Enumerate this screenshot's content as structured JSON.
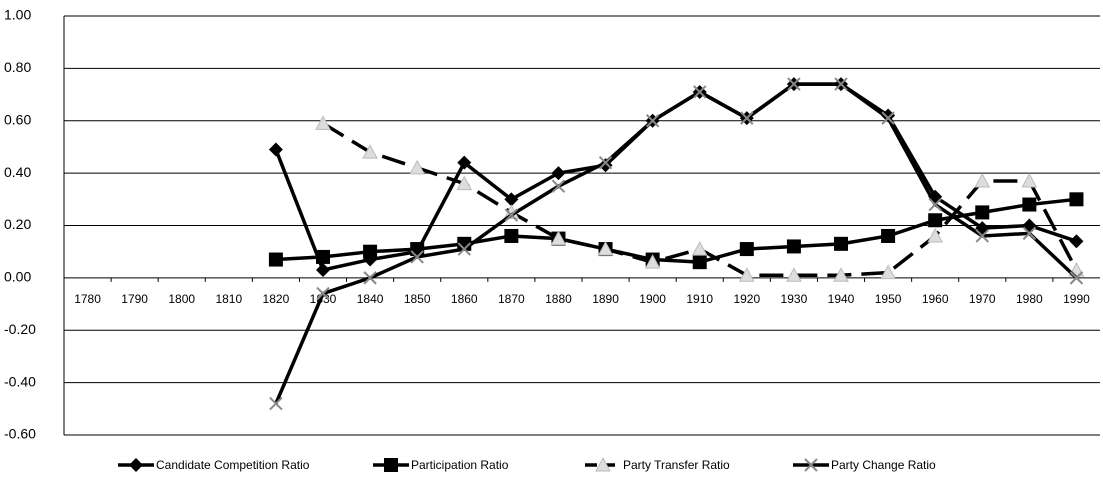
{
  "chart_data": {
    "type": "line",
    "categories": [
      "1780",
      "1790",
      "1800",
      "1810",
      "1820",
      "1830",
      "1840",
      "1850",
      "1860",
      "1870",
      "1880",
      "1890",
      "1900",
      "1910",
      "1920",
      "1930",
      "1940",
      "1950",
      "1960",
      "1970",
      "1980",
      "1990"
    ],
    "ylim": [
      -0.6,
      1.0
    ],
    "yticks": [
      {
        "value": 1.0,
        "label": "1.00"
      },
      {
        "value": 0.8,
        "label": "0.80"
      },
      {
        "value": 0.6,
        "label": "0.60"
      },
      {
        "value": 0.4,
        "label": "0.40"
      },
      {
        "value": 0.2,
        "label": "0.20"
      },
      {
        "value": 0,
        "label": "0.00"
      },
      {
        "value": -0.2,
        "label": "-0.20"
      },
      {
        "value": -0.4,
        "label": "-0.40"
      },
      {
        "value": -0.6,
        "label": "-0.60"
      }
    ],
    "grid": true,
    "legend": "bottom",
    "series": [
      {
        "name": "Candidate Competition Ratio",
        "color": "#000000",
        "marker": "diamond",
        "dashed": false,
        "values": [
          null,
          null,
          null,
          null,
          0.49,
          0.03,
          0.07,
          0.1,
          0.44,
          0.3,
          0.4,
          0.43,
          0.6,
          0.71,
          0.61,
          0.74,
          0.74,
          0.62,
          0.31,
          0.19,
          0.2,
          0.14
        ]
      },
      {
        "name": "Participation Ratio",
        "color": "#000000",
        "marker": "square",
        "dashed": false,
        "values": [
          null,
          null,
          null,
          null,
          0.07,
          0.08,
          0.1,
          0.11,
          0.13,
          0.16,
          0.15,
          0.11,
          0.07,
          0.06,
          0.11,
          0.12,
          0.13,
          0.16,
          0.22,
          0.25,
          0.28,
          0.3
        ]
      },
      {
        "name": "Party Transfer Ratio",
        "color": "#000000",
        "marker": "triangle",
        "dashed": true,
        "values": [
          null,
          null,
          null,
          null,
          null,
          0.59,
          0.48,
          0.42,
          0.36,
          0.25,
          0.15,
          0.11,
          0.06,
          0.11,
          0.01,
          0.01,
          0.01,
          0.02,
          0.16,
          0.37,
          0.37,
          0.03
        ]
      },
      {
        "name": "Party Change Ratio",
        "color": "#000000",
        "marker": "x",
        "dashed": false,
        "values": [
          null,
          null,
          null,
          null,
          -0.48,
          -0.06,
          0.0,
          0.08,
          0.11,
          0.24,
          0.35,
          0.44,
          0.6,
          0.71,
          0.61,
          0.74,
          0.74,
          0.61,
          0.28,
          0.16,
          0.17,
          0.0
        ]
      }
    ]
  }
}
